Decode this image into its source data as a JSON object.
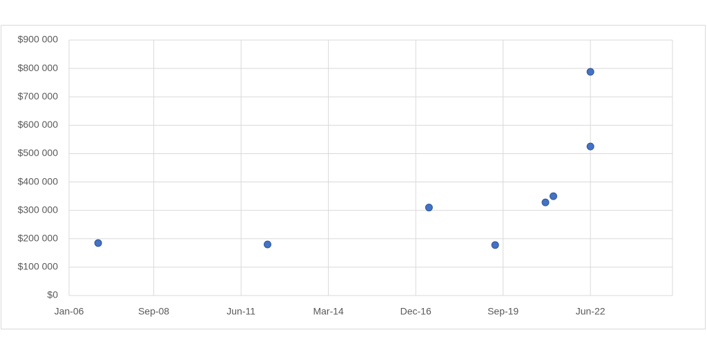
{
  "chart_data": {
    "type": "scatter",
    "x": [
      "2006-12",
      "2012-04",
      "2017-05",
      "2019-06",
      "2021-01",
      "2021-04",
      "2022-06",
      "2022-06"
    ],
    "values": [
      185000,
      180000,
      310000,
      178000,
      328000,
      350000,
      525000,
      788000
    ],
    "color": "#4472c4",
    "xlim": [
      "2006-01",
      "2025-01"
    ],
    "xticks": [
      {
        "value": "2006-01",
        "label": "Jan-06"
      },
      {
        "value": "2008-09",
        "label": "Sep-08"
      },
      {
        "value": "2011-06",
        "label": "Jun-11"
      },
      {
        "value": "2014-03",
        "label": "Mar-14"
      },
      {
        "value": "2016-12",
        "label": "Dec-16"
      },
      {
        "value": "2019-09",
        "label": "Sep-19"
      },
      {
        "value": "2022-06",
        "label": "Jun-22"
      }
    ],
    "ylim": [
      0,
      900000
    ],
    "yticks": [
      {
        "value": 0,
        "label": "$0"
      },
      {
        "value": 100000,
        "label": "$100 000"
      },
      {
        "value": 200000,
        "label": "$200 000"
      },
      {
        "value": 300000,
        "label": "$300 000"
      },
      {
        "value": 400000,
        "label": "$400 000"
      },
      {
        "value": 500000,
        "label": "$500 000"
      },
      {
        "value": 600000,
        "label": "$600 000"
      },
      {
        "value": 700000,
        "label": "$700 000"
      },
      {
        "value": 800000,
        "label": "$800 000"
      },
      {
        "value": 900000,
        "label": "$900 000"
      }
    ],
    "grid": true
  }
}
